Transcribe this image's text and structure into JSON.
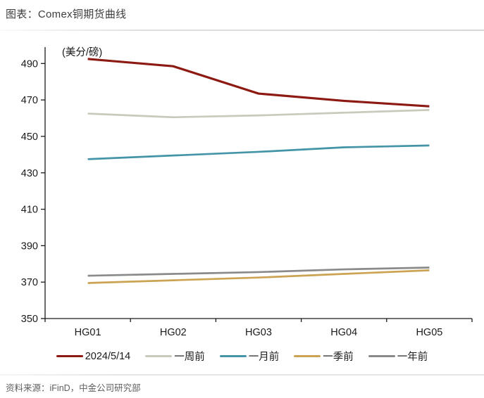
{
  "page": {
    "title": "图表：Comex铜期货曲线",
    "source_note": "资料来源：iFinD，中金公司研究部"
  },
  "chart_data": {
    "type": "line",
    "title": "图表：Comex铜期货曲线",
    "unit_label": "(美分/磅)",
    "categories": [
      "HG01",
      "HG02",
      "HG03",
      "HG04",
      "HG05"
    ],
    "series": [
      {
        "name": "2024/5/14",
        "color": "#8D1A12",
        "values": [
          492.5,
          488.5,
          473.5,
          469.5,
          466.5
        ]
      },
      {
        "name": "一周前",
        "color": "#C9CABC",
        "values": [
          462.5,
          460.5,
          461.5,
          463.0,
          464.5
        ]
      },
      {
        "name": "一月前",
        "color": "#4394A7",
        "values": [
          437.5,
          439.5,
          441.5,
          444.0,
          445.0
        ]
      },
      {
        "name": "一季前",
        "color": "#CCA352",
        "values": [
          369.5,
          371.0,
          372.5,
          374.5,
          376.5
        ]
      },
      {
        "name": "一年前",
        "color": "#8A8A8A",
        "values": [
          373.5,
          374.5,
          375.5,
          377.0,
          378.0
        ]
      }
    ],
    "y_axis": {
      "min": 350,
      "max": 499,
      "tick_interval": 20,
      "ticks": [
        350,
        370,
        390,
        410,
        430,
        450,
        470,
        490
      ]
    },
    "xlabel": "",
    "ylabel": "(美分/磅)",
    "grid": false,
    "legend_position": "bottom",
    "axis_color": "#1a1a1a"
  }
}
